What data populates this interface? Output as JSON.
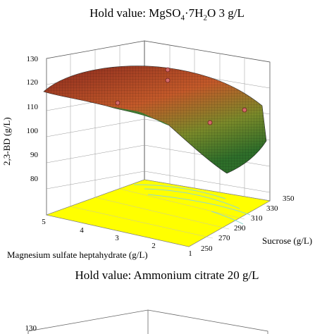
{
  "chart_data": [
    {
      "type": "surface",
      "title_parts": {
        "prefix": "Hold value: MgSO",
        "sub1": "4",
        "dot": "·7H",
        "sub2": "2",
        "suffix": "O 3 g/L"
      },
      "zlabel": "2,3-BD (g/L)",
      "xlabel": "Sucrose (g/L)",
      "ylabel": "Magnesium sulfate heptahydrate  (g/L)",
      "z_ticks": [
        "80",
        "90",
        "100",
        "110",
        "120",
        "130"
      ],
      "x_ticks": [
        "250",
        "270",
        "290",
        "310",
        "330",
        "350"
      ],
      "y_ticks": [
        "1",
        "2",
        "3",
        "4",
        "5"
      ],
      "zlim": [
        80,
        130
      ],
      "xlim": [
        250,
        350
      ],
      "ylim": [
        1,
        5
      ],
      "surface_corners": {
        "sucrose_250_mgso4_5": 115,
        "sucrose_250_mgso4_1": 111,
        "sucrose_350_mgso4_5": 104,
        "sucrose_350_mgso4_1": 96,
        "peak": 122
      },
      "design_points": [
        {
          "sucrose": 300,
          "mgso4": 3,
          "bd": 126
        },
        {
          "sucrose": 300,
          "mgso4": 3,
          "bd": 124
        },
        {
          "sucrose": 250,
          "mgso4": 3,
          "bd": 111
        },
        {
          "sucrose": 350,
          "mgso4": 3,
          "bd": 108
        },
        {
          "sucrose": 300,
          "mgso4": 1,
          "bd": 101
        }
      ],
      "colors": {
        "surface_high": "#c0392b",
        "surface_low": "#2e7d32",
        "floor": "#ffff00",
        "contour": "#7fd6d0",
        "point": "#c0504d"
      }
    },
    {
      "type": "surface",
      "title": "Hold value: Ammonium citrate 20 g/L",
      "z_ticks": [
        "130"
      ]
    }
  ]
}
